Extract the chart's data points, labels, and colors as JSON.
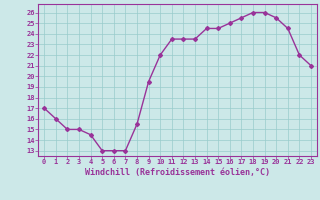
{
  "x": [
    0,
    1,
    2,
    3,
    4,
    5,
    6,
    7,
    8,
    9,
    10,
    11,
    12,
    13,
    14,
    15,
    16,
    17,
    18,
    19,
    20,
    21,
    22,
    23
  ],
  "y": [
    17,
    16,
    15,
    15,
    14.5,
    13,
    13,
    13,
    15.5,
    19.5,
    22,
    23.5,
    23.5,
    23.5,
    24.5,
    24.5,
    25,
    25.5,
    26,
    26,
    25.5,
    24.5,
    22,
    21
  ],
  "line_color": "#993399",
  "marker": "D",
  "marker_size": 2.0,
  "bg_color": "#cce8e8",
  "grid_color": "#99cccc",
  "xlabel": "Windchill (Refroidissement éolien,°C)",
  "xlabel_color": "#993399",
  "ylabel_ticks": [
    13,
    14,
    15,
    16,
    17,
    18,
    19,
    20,
    21,
    22,
    23,
    24,
    25,
    26
  ],
  "ylim": [
    12.5,
    26.8
  ],
  "xlim": [
    -0.5,
    23.5
  ],
  "xticks": [
    0,
    1,
    2,
    3,
    4,
    5,
    6,
    7,
    8,
    9,
    10,
    11,
    12,
    13,
    14,
    15,
    16,
    17,
    18,
    19,
    20,
    21,
    22,
    23
  ],
  "tick_fontsize": 5.0,
  "xlabel_fontsize": 6.0,
  "line_width": 1.0,
  "spine_color": "#993399"
}
